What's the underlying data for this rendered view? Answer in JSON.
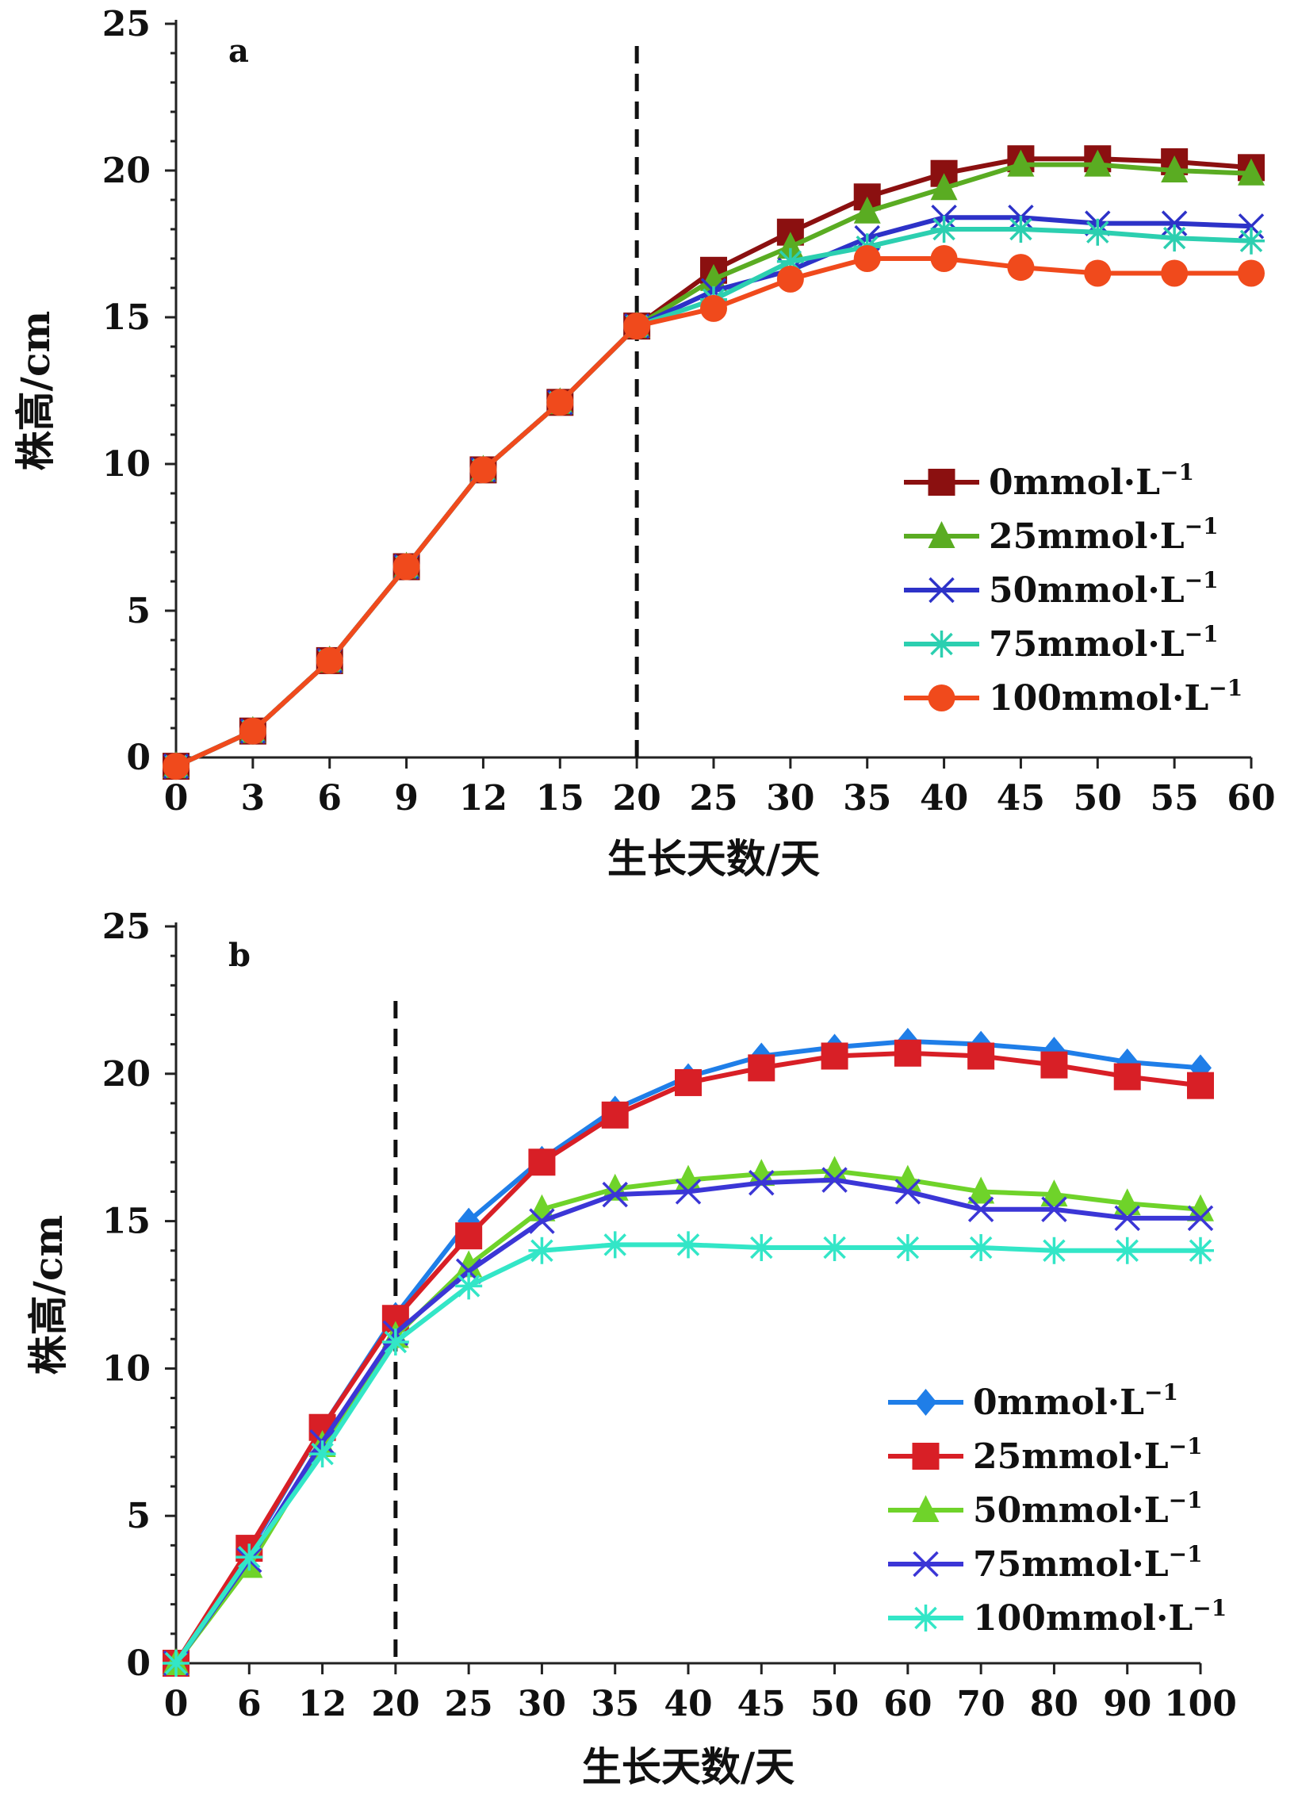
{
  "chart_data": [
    {
      "type": "line",
      "panel_label": "a",
      "x": [
        "0",
        "3",
        "6",
        "9",
        "12",
        "15",
        "20",
        "25",
        "30",
        "35",
        "40",
        "45",
        "50",
        "55",
        "60"
      ],
      "xlabel": "生长天数/天",
      "ylabel": "株高/cm",
      "ylim": [
        0,
        25
      ],
      "yticks": [
        "0",
        "5",
        "10",
        "15",
        "20",
        "25"
      ],
      "divider_at": "20",
      "legend_position": "right-middle",
      "series": [
        {
          "name": "0mmol·L",
          "sup": "−1",
          "color": "#8b1010",
          "marker": "square",
          "values": [
            -0.3,
            0.9,
            3.3,
            6.5,
            9.8,
            12.1,
            14.7,
            16.6,
            17.9,
            19.1,
            19.9,
            20.4,
            20.4,
            20.3,
            20.1
          ]
        },
        {
          "name": "25mmol·L",
          "sup": "−1",
          "color": "#5aac22",
          "marker": "triangle",
          "values": [
            -0.3,
            0.9,
            3.3,
            6.5,
            9.8,
            12.1,
            14.7,
            16.3,
            17.4,
            18.6,
            19.4,
            20.2,
            20.2,
            20.0,
            19.9
          ]
        },
        {
          "name": "50mmol·L",
          "sup": "−1",
          "color": "#2d32c8",
          "marker": "x",
          "values": [
            -0.3,
            0.9,
            3.3,
            6.5,
            9.8,
            12.1,
            14.7,
            15.9,
            16.6,
            17.7,
            18.4,
            18.4,
            18.2,
            18.2,
            18.1
          ]
        },
        {
          "name": "75mmol·L",
          "sup": "−1",
          "color": "#2ccfb0",
          "marker": "asterisk",
          "values": [
            -0.3,
            0.9,
            3.3,
            6.5,
            9.8,
            12.1,
            14.7,
            15.6,
            16.9,
            17.4,
            18.0,
            18.0,
            17.9,
            17.7,
            17.6
          ]
        },
        {
          "name": "100mmol·L",
          "sup": "−1",
          "color": "#f04a1c",
          "marker": "circle",
          "values": [
            -0.3,
            0.9,
            3.3,
            6.5,
            9.8,
            12.1,
            14.7,
            15.3,
            16.3,
            17.0,
            17.0,
            16.7,
            16.5,
            16.5,
            16.5
          ]
        }
      ]
    },
    {
      "type": "line",
      "panel_label": "b",
      "x": [
        "0",
        "6",
        "12",
        "20",
        "25",
        "30",
        "35",
        "40",
        "45",
        "50",
        "60",
        "70",
        "80",
        "90",
        "100"
      ],
      "xlabel": "生长天数/天",
      "ylabel": "株高/cm",
      "ylim": [
        0,
        25
      ],
      "yticks": [
        "0",
        "5",
        "10",
        "15",
        "20",
        "25"
      ],
      "divider_at": "20",
      "legend_position": "right-lower",
      "series": [
        {
          "name": "0mmol·L",
          "sup": "−1",
          "color": "#1f7ee8",
          "marker": "diamond",
          "values": [
            0,
            3.8,
            8.0,
            11.8,
            15.0,
            17.1,
            18.8,
            19.9,
            20.6,
            20.9,
            21.1,
            21.0,
            20.8,
            20.4,
            20.2
          ]
        },
        {
          "name": "25mmol·L",
          "sup": "−1",
          "color": "#d81f26",
          "marker": "square",
          "values": [
            0,
            3.9,
            8.0,
            11.7,
            14.5,
            17.0,
            18.6,
            19.7,
            20.2,
            20.6,
            20.7,
            20.6,
            20.3,
            19.9,
            19.6
          ]
        },
        {
          "name": "50mmol·L",
          "sup": "−1",
          "color": "#6fd32a",
          "marker": "triangle",
          "values": [
            0,
            3.3,
            7.4,
            11.1,
            13.5,
            15.4,
            16.1,
            16.4,
            16.6,
            16.7,
            16.4,
            16.0,
            15.9,
            15.6,
            15.4
          ]
        },
        {
          "name": "75mmol·L",
          "sup": "−1",
          "color": "#3b36d6",
          "marker": "x",
          "values": [
            0,
            3.5,
            7.5,
            11.2,
            13.3,
            15.0,
            15.9,
            16.0,
            16.3,
            16.4,
            16.0,
            15.4,
            15.4,
            15.1,
            15.1
          ]
        },
        {
          "name": "100mmol·L",
          "sup": "−1",
          "color": "#33e6c7",
          "marker": "asterisk",
          "values": [
            0,
            3.6,
            7.1,
            10.9,
            12.8,
            14.0,
            14.2,
            14.2,
            14.1,
            14.1,
            14.1,
            14.1,
            14.0,
            14.0,
            14.0
          ]
        }
      ]
    }
  ]
}
